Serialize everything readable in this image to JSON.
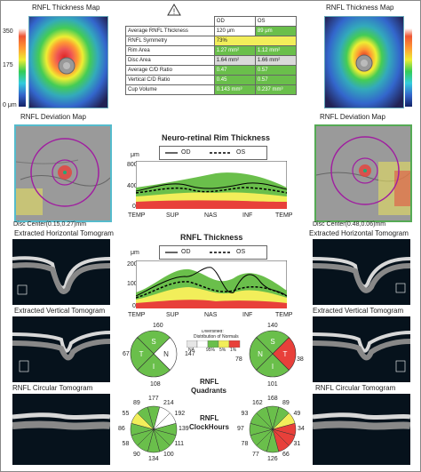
{
  "title_left": "RNFL Thickness Map",
  "title_right": "RNFL Thickness Map",
  "scale_labels": [
    "350",
    "175",
    "0 μm"
  ],
  "warning_icon_label": "!",
  "table": {
    "header_od": "OD",
    "header_os": "OS",
    "rows": [
      {
        "label": "Average RNFL Thickness",
        "od": "120 μm",
        "os": "89 μm",
        "od_color": "white",
        "os_color": "green"
      },
      {
        "label": "RNFL Symmetry",
        "od": "73%",
        "os": "",
        "od_color": "yellow",
        "os_color": "yellow"
      },
      {
        "label": "Rim Area",
        "od": "1.27 mm²",
        "os": "1.12 mm²",
        "od_color": "green",
        "os_color": "green"
      },
      {
        "label": "Disc Area",
        "od": "1.64 mm²",
        "os": "1.66 mm²",
        "od_color": "gray",
        "os_color": "gray"
      },
      {
        "label": "Average C/D Ratio",
        "od": "0.47",
        "os": "0.57",
        "od_color": "green",
        "os_color": "green"
      },
      {
        "label": "Vertical C/D Ratio",
        "od": "0.45",
        "os": "0.57",
        "od_color": "green",
        "os_color": "green"
      },
      {
        "label": "Cup Volume",
        "od": "0.143 mm³",
        "os": "0.237 mm³",
        "od_color": "green",
        "os_color": "green"
      }
    ]
  },
  "deviation_title_left": "RNFL Deviation Map",
  "deviation_title_right": "RNFL Deviation Map",
  "disc_center_left": "Disc Center(0.15,0.27)mm",
  "disc_center_right": "Disc Center(0.48,0.06)mm",
  "rim_chart": {
    "title": "Neuro-retinal Rim Thickness",
    "unit": "μm",
    "yticks": [
      "800",
      "400",
      "0"
    ],
    "legend_od": "OD",
    "legend_os": "OS",
    "xticks": [
      "TEMP",
      "SUP",
      "NAS",
      "INF",
      "TEMP"
    ]
  },
  "rnfl_chart": {
    "title": "RNFL Thickness",
    "unit": "μm",
    "yticks": [
      "200",
      "100",
      "0"
    ],
    "legend_od": "OD",
    "legend_os": "OS",
    "xticks": [
      "TEMP",
      "SUP",
      "NAS",
      "INF",
      "TEMP"
    ]
  },
  "tomo": {
    "extracted_horizontal_left": "Extracted Horizontal Tomogram",
    "extracted_horizontal_right": "Extracted Horizontal Tomogram",
    "extracted_vertical_left": "Extracted Vertical Tomogram",
    "extracted_vertical_right": "Extracted Vertical Tomogram",
    "circular_left": "RNFL Circular Tomogram",
    "circular_right": "RNFL Circular Tomogram"
  },
  "legend_box": {
    "title": "Diversified:",
    "subtitle": "Distribution of Normals",
    "labels": [
      "NA",
      "95%",
      "5%",
      "1%"
    ],
    "colors": [
      "#e6e6e6",
      "#ffffff",
      "#6abf4b",
      "#f2ee5a",
      "#e8403a"
    ]
  },
  "quadrants": {
    "title_line1": "RNFL",
    "title_line2": "Quadrants",
    "od": {
      "S": "160",
      "N": "147",
      "I": "108",
      "T": "67",
      "letters": [
        "S",
        "N",
        "I",
        "T"
      ],
      "colors": [
        "#6abf4b",
        "#ffffff",
        "#6abf4b",
        "#6abf4b"
      ]
    },
    "os": {
      "S": "140",
      "N": "78",
      "I": "101",
      "T": "38",
      "letters": [
        "S",
        "N",
        "I",
        "T"
      ],
      "colors": [
        "#6abf4b",
        "#6abf4b",
        "#6abf4b",
        "#e8403a"
      ]
    }
  },
  "clockhours": {
    "title_line1": "RNFL",
    "title_line2": "ClockHours",
    "od": {
      "values": [
        "177",
        "214",
        "192",
        "139",
        "111",
        "100",
        "134",
        "90",
        "58",
        "86",
        "55",
        "89"
      ],
      "colors": [
        "#6abf4b",
        "#ffffff",
        "#ffffff",
        "#6abf4b",
        "#6abf4b",
        "#6abf4b",
        "#6abf4b",
        "#6abf4b",
        "#6abf4b",
        "#6abf4b",
        "#f2ee5a",
        "#6abf4b"
      ]
    },
    "os": {
      "values": [
        "168",
        "89",
        "49",
        "34",
        "31",
        "66",
        "126",
        "77",
        "78",
        "97",
        "93",
        "162"
      ],
      "colors": [
        "#6abf4b",
        "#6abf4b",
        "#f2ee5a",
        "#e8403a",
        "#e8403a",
        "#e8403a",
        "#6abf4b",
        "#6abf4b",
        "#6abf4b",
        "#6abf4b",
        "#6abf4b",
        "#6abf4b"
      ]
    }
  }
}
